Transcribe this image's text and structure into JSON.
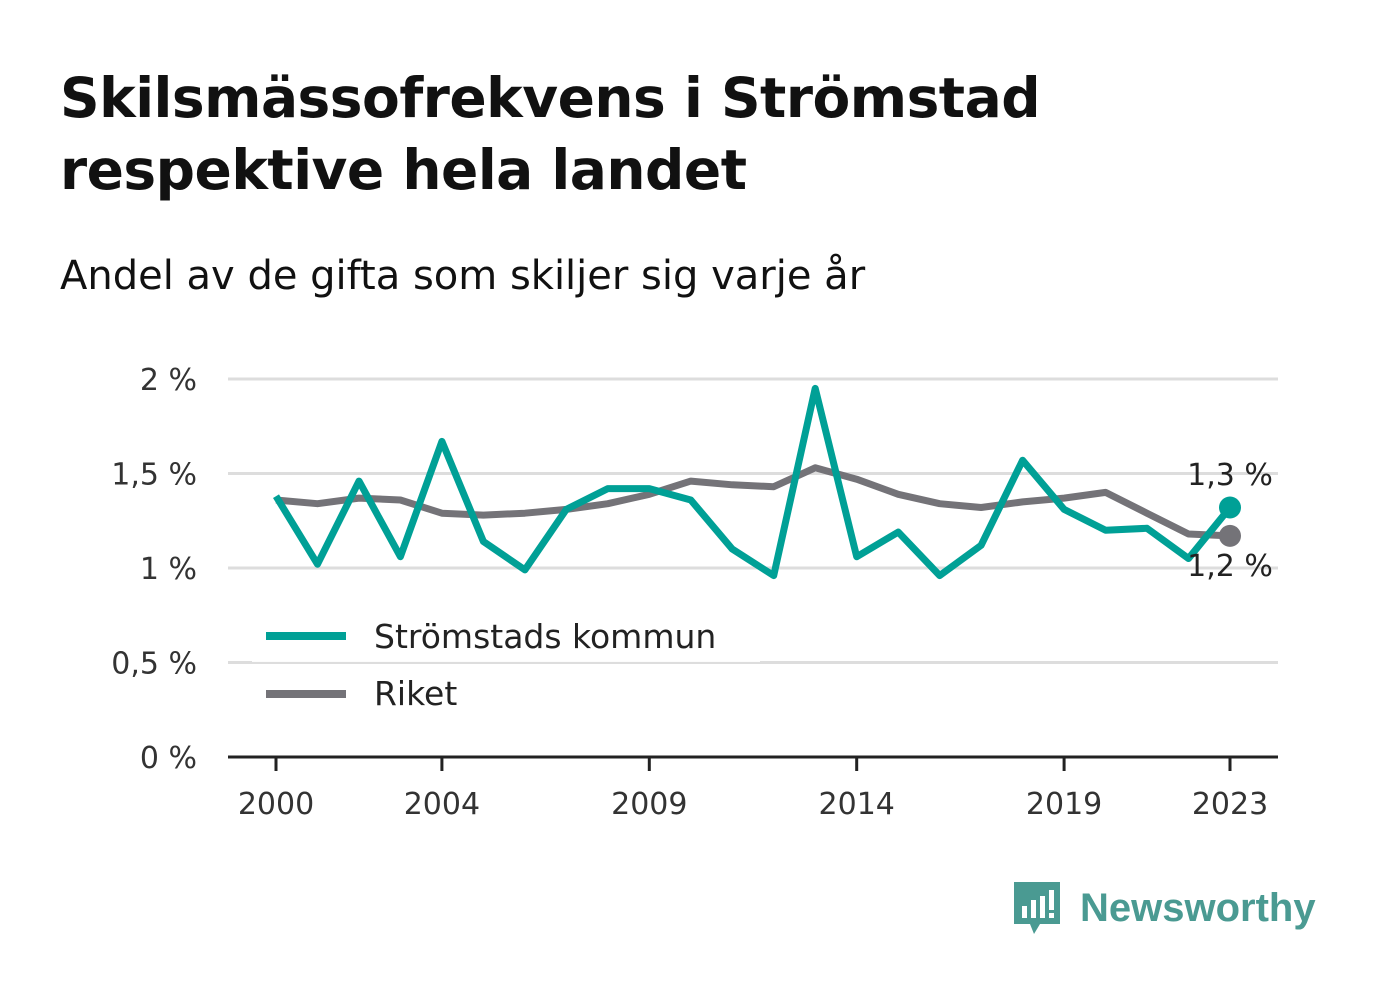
{
  "title": "Skilsmässofrekvens i Strömstad respektive hela landet",
  "subtitle": "Andel av de gifta som skiljer sig varje år",
  "brand": {
    "name": "Newsworthy",
    "icon": "newsworthy-logo-icon",
    "color": "#4a9a92"
  },
  "chart_data": {
    "type": "line",
    "x": [
      2000,
      2001,
      2002,
      2003,
      2004,
      2005,
      2006,
      2007,
      2008,
      2009,
      2010,
      2011,
      2012,
      2013,
      2014,
      2015,
      2016,
      2017,
      2018,
      2019,
      2020,
      2021,
      2022,
      2023
    ],
    "x_ticks": [
      2000,
      2004,
      2009,
      2014,
      2019,
      2023
    ],
    "x_tick_labels": [
      "2000",
      "2004",
      "2009",
      "2014",
      "2019",
      "2023"
    ],
    "y_ticks": [
      0,
      0.5,
      1,
      1.5,
      2
    ],
    "y_tick_labels": [
      "0 %",
      "0,5 %",
      "1 %",
      "1,5 %",
      "2 %"
    ],
    "ylim": [
      0,
      2
    ],
    "grid": true,
    "legend_position": "bottom-left",
    "series": [
      {
        "name": "Strömstads kommun",
        "color": "#00a096",
        "values": [
          1.38,
          1.02,
          1.46,
          1.06,
          1.67,
          1.14,
          0.99,
          1.31,
          1.42,
          1.42,
          1.36,
          1.1,
          0.96,
          1.95,
          1.06,
          1.19,
          0.96,
          1.12,
          1.57,
          1.31,
          1.2,
          1.21,
          1.05,
          1.32
        ],
        "end_label": "1,3 %"
      },
      {
        "name": "Riket",
        "color": "#747378",
        "values": [
          1.36,
          1.34,
          1.37,
          1.36,
          1.29,
          1.28,
          1.29,
          1.31,
          1.34,
          1.39,
          1.46,
          1.44,
          1.43,
          1.53,
          1.47,
          1.39,
          1.34,
          1.32,
          1.35,
          1.37,
          1.4,
          1.29,
          1.18,
          1.17
        ],
        "end_label": "1,2 %"
      }
    ]
  }
}
